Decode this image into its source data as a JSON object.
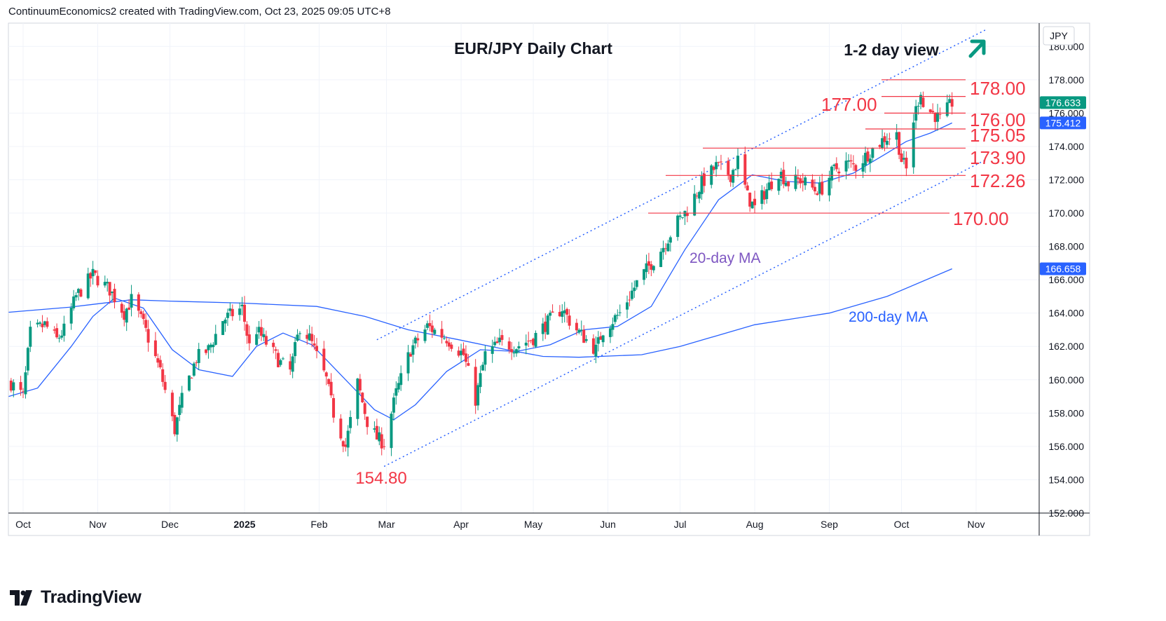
{
  "header": {
    "attribution": "ContinuumEconomics2 created with TradingView.com, Oct 23, 2025 09:05 UTC+8"
  },
  "footer": {
    "brand": "TradingView"
  },
  "colors": {
    "up": "#089981",
    "down": "#f23645",
    "ma20": "#2962ff",
    "ma200": "#2962ff",
    "level": "#f23645",
    "channel": "#2962ff",
    "arrow": "#089981",
    "ma_label": "#7e57c2",
    "ma200_label": "#2962ff"
  },
  "chart_data": {
    "type": "candlestick",
    "title": "EUR/JPY Daily Chart",
    "view_label": "1-2 day view",
    "currency_label": "JPY",
    "x_tick_labels": [
      "Oct",
      "Nov",
      "Dec",
      "2025",
      "Feb",
      "Mar",
      "Apr",
      "May",
      "Jun",
      "Jul",
      "Aug",
      "Sep",
      "Oct",
      "Nov"
    ],
    "y_tick_labels": [
      "152.000",
      "154.000",
      "156.000",
      "158.000",
      "160.000",
      "162.000",
      "164.000",
      "166.000",
      "168.000",
      "170.000",
      "172.000",
      "174.000",
      "176.000",
      "178.000",
      "180.000"
    ],
    "ylim": [
      152,
      181.4
    ],
    "grid": true,
    "price_tags": [
      {
        "label": "176.633",
        "value": 176.633,
        "color": "#089981"
      },
      {
        "label": "175.412",
        "value": 175.412,
        "color": "#2962ff"
      },
      {
        "label": "166.658",
        "value": 166.658,
        "color": "#2962ff"
      }
    ],
    "levels": [
      {
        "label": "178.00",
        "value": 178.0
      },
      {
        "label": "177.00",
        "value": 177.0
      },
      {
        "label": "176.00",
        "value": 176.0
      },
      {
        "label": "175.05",
        "value": 175.05
      },
      {
        "label": "173.90",
        "value": 173.9
      },
      {
        "label": "172.26",
        "value": 172.26
      },
      {
        "label": "170.00",
        "value": 170.0
      }
    ],
    "annotations": {
      "low_label": "154.80",
      "low_value": 154.8,
      "ma20_label": "20-day MA",
      "ma200_label": "200-day MA"
    },
    "series_anchors": {
      "price": [
        [
          "2024-09-26",
          159.8
        ],
        [
          "2024-10-01",
          159.0
        ],
        [
          "2024-10-04",
          162.8
        ],
        [
          "2024-10-10",
          163.3
        ],
        [
          "2024-10-15",
          162.4
        ],
        [
          "2024-10-18",
          163.0
        ],
        [
          "2024-10-23",
          165.0
        ],
        [
          "2024-10-30",
          166.3
        ],
        [
          "2024-11-06",
          165.4
        ],
        [
          "2024-11-12",
          164.0
        ],
        [
          "2024-11-15",
          164.8
        ],
        [
          "2024-11-20",
          163.3
        ],
        [
          "2024-11-27",
          160.5
        ],
        [
          "2024-12-03",
          157.0
        ],
        [
          "2024-12-06",
          158.8
        ],
        [
          "2024-12-12",
          161.3
        ],
        [
          "2024-12-17",
          161.8
        ],
        [
          "2024-12-23",
          163.6
        ],
        [
          "2024-12-31",
          164.3
        ],
        [
          "2025-01-03",
          162.0
        ],
        [
          "2025-01-06",
          163.0
        ],
        [
          "2025-01-10",
          162.2
        ],
        [
          "2025-01-16",
          161.0
        ],
        [
          "2025-01-20",
          160.5
        ],
        [
          "2025-01-24",
          163.2
        ],
        [
          "2025-01-28",
          162.5
        ],
        [
          "2025-02-04",
          160.0
        ],
        [
          "2025-02-07",
          158.0
        ],
        [
          "2025-02-12",
          156.0
        ],
        [
          "2025-02-17",
          159.8
        ],
        [
          "2025-02-21",
          157.5
        ],
        [
          "2025-02-25",
          156.5
        ],
        [
          "2025-02-28",
          156.2
        ],
        [
          "2025-03-05",
          159.2
        ],
        [
          "2025-03-11",
          161.8
        ],
        [
          "2025-03-18",
          163.2
        ],
        [
          "2025-03-26",
          162.5
        ],
        [
          "2025-04-02",
          161.5
        ],
        [
          "2025-04-07",
          158.8
        ],
        [
          "2025-04-11",
          161.5
        ],
        [
          "2025-04-17",
          162.2
        ],
        [
          "2025-04-24",
          162.0
        ],
        [
          "2025-05-01",
          162.5
        ],
        [
          "2025-05-06",
          163.3
        ],
        [
          "2025-05-13",
          164.3
        ],
        [
          "2025-05-17",
          163.3
        ],
        [
          "2025-05-21",
          162.7
        ],
        [
          "2025-05-27",
          161.8
        ],
        [
          "2025-05-30",
          163.0
        ],
        [
          "2025-06-06",
          164.0
        ],
        [
          "2025-06-13",
          165.8
        ],
        [
          "2025-06-18",
          166.8
        ],
        [
          "2025-06-24",
          168.0
        ],
        [
          "2025-06-30",
          169.5
        ],
        [
          "2025-07-04",
          170.2
        ],
        [
          "2025-07-10",
          171.8
        ],
        [
          "2025-07-16",
          172.8
        ],
        [
          "2025-07-22",
          172.3
        ],
        [
          "2025-07-25",
          173.2
        ],
        [
          "2025-07-29",
          171.0
        ],
        [
          "2025-08-01",
          170.3
        ],
        [
          "2025-08-05",
          171.2
        ],
        [
          "2025-08-11",
          172.5
        ],
        [
          "2025-08-15",
          171.8
        ],
        [
          "2025-08-20",
          172.0
        ],
        [
          "2025-08-26",
          171.4
        ],
        [
          "2025-08-29",
          171.5
        ],
        [
          "2025-09-03",
          172.6
        ],
        [
          "2025-09-08",
          173.0
        ],
        [
          "2025-09-12",
          172.8
        ],
        [
          "2025-09-18",
          173.7
        ],
        [
          "2025-09-24",
          174.5
        ],
        [
          "2025-09-29",
          174.7
        ],
        [
          "2025-10-01",
          173.2
        ],
        [
          "2025-10-03",
          172.6
        ],
        [
          "2025-10-06",
          175.6
        ],
        [
          "2025-10-08",
          176.8
        ],
        [
          "2025-10-09",
          177.4
        ],
        [
          "2025-10-10",
          176.4
        ],
        [
          "2025-10-14",
          176.0
        ],
        [
          "2025-10-17",
          175.6
        ],
        [
          "2025-10-20",
          176.2
        ],
        [
          "2025-10-22",
          176.63
        ]
      ],
      "ma20": [
        [
          "2024-09-25",
          159.0
        ],
        [
          "2024-10-07",
          159.5
        ],
        [
          "2024-10-21",
          162.0
        ],
        [
          "2024-10-30",
          163.8
        ],
        [
          "2024-11-08",
          164.9
        ],
        [
          "2024-11-20",
          164.3
        ],
        [
          "2024-12-02",
          161.8
        ],
        [
          "2024-12-13",
          160.6
        ],
        [
          "2024-12-27",
          160.2
        ],
        [
          "2025-01-06",
          162.0
        ],
        [
          "2025-01-17",
          162.8
        ],
        [
          "2025-01-29",
          162.1
        ],
        [
          "2025-02-10",
          160.3
        ],
        [
          "2025-02-24",
          158.2
        ],
        [
          "2025-03-04",
          157.6
        ],
        [
          "2025-03-13",
          158.5
        ],
        [
          "2025-03-26",
          160.5
        ],
        [
          "2025-04-09",
          161.8
        ],
        [
          "2025-04-24",
          161.7
        ],
        [
          "2025-05-08",
          162.1
        ],
        [
          "2025-05-22",
          163.0
        ],
        [
          "2025-06-05",
          163.2
        ],
        [
          "2025-06-19",
          164.4
        ],
        [
          "2025-07-03",
          167.8
        ],
        [
          "2025-07-17",
          170.8
        ],
        [
          "2025-07-31",
          172.3
        ],
        [
          "2025-08-14",
          171.9
        ],
        [
          "2025-08-28",
          171.8
        ],
        [
          "2025-09-11",
          172.4
        ],
        [
          "2025-09-25",
          173.6
        ],
        [
          "2025-10-03",
          174.3
        ],
        [
          "2025-10-13",
          174.8
        ],
        [
          "2025-10-22",
          175.41
        ]
      ],
      "ma200": [
        [
          "2024-09-25",
          164.05
        ],
        [
          "2024-10-20",
          164.35
        ],
        [
          "2024-11-15",
          164.8
        ],
        [
          "2024-12-01",
          164.72
        ],
        [
          "2024-12-31",
          164.6
        ],
        [
          "2025-01-31",
          164.4
        ],
        [
          "2025-02-20",
          163.8
        ],
        [
          "2025-03-10",
          163.0
        ],
        [
          "2025-03-31",
          162.4
        ],
        [
          "2025-04-20",
          161.8
        ],
        [
          "2025-05-05",
          161.4
        ],
        [
          "2025-05-20",
          161.35
        ],
        [
          "2025-06-15",
          161.5
        ],
        [
          "2025-07-01",
          162.0
        ],
        [
          "2025-08-01",
          163.3
        ],
        [
          "2025-09-01",
          164.0
        ],
        [
          "2025-09-25",
          165.0
        ],
        [
          "2025-10-22",
          166.66
        ]
      ]
    },
    "channel": {
      "upper": [
        [
          "2025-02-25",
          162.4
        ],
        [
          "2025-11-05",
          181.0
        ]
      ],
      "lower": [
        [
          "2025-02-28",
          154.8
        ],
        [
          "2025-11-05",
          173.2
        ]
      ]
    }
  }
}
